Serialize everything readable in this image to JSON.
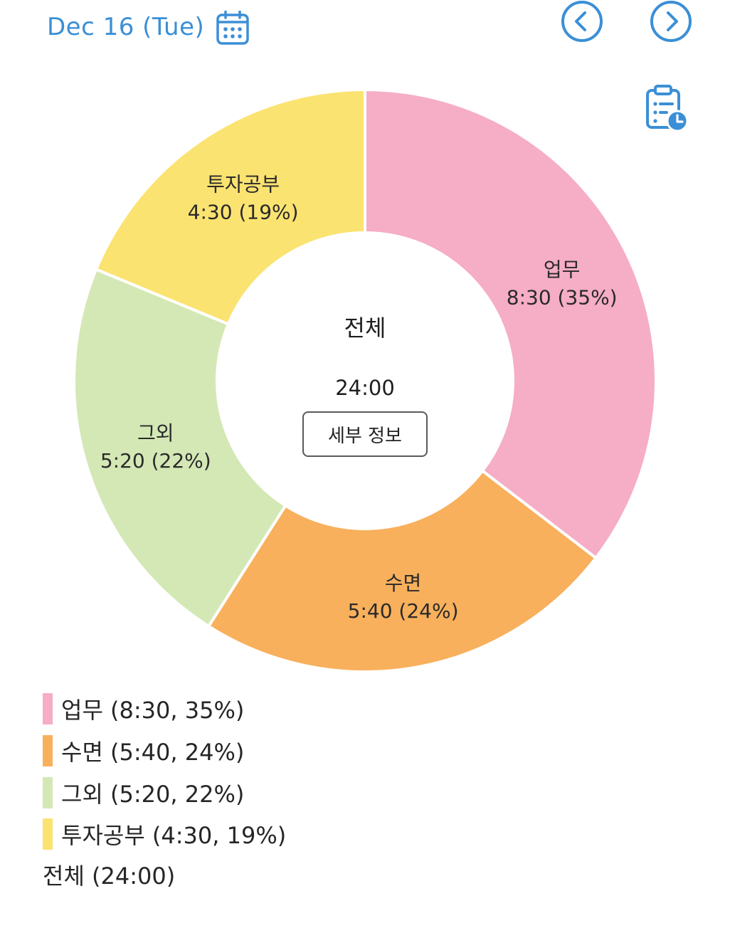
{
  "header": {
    "date_label": "Dec 16 (Tue)",
    "accent_color": "#3b8fd6",
    "calendar_icon": "calendar-icon",
    "prev_icon": "chevron-left-circle-icon",
    "next_icon": "chevron-right-circle-icon",
    "report_icon": "clipboard-clock-icon"
  },
  "chart_data": {
    "type": "pie",
    "donut": true,
    "center_title": "전체",
    "center_total": "24:00",
    "slices": [
      {
        "name": "업무",
        "time": "8:30",
        "percent": 35,
        "label": "8:30 (35%)",
        "color": "#f6adc6"
      },
      {
        "name": "수면",
        "time": "5:40",
        "percent": 24,
        "label": "5:40 (24%)",
        "color": "#f8b05c"
      },
      {
        "name": "그외",
        "time": "5:20",
        "percent": 22,
        "label": "5:20 (22%)",
        "color": "#d4e8b5"
      },
      {
        "name": "투자공부",
        "time": "4:30",
        "percent": 19,
        "label": "4:30 (19%)",
        "color": "#fbe371"
      }
    ],
    "minutes": [
      510,
      340,
      320,
      270
    ]
  },
  "detail_button": {
    "label": "세부 정보"
  },
  "legend": {
    "items": [
      {
        "text": "업무 (8:30, 35%)",
        "color": "#f6adc6"
      },
      {
        "text": "수면 (5:40, 24%)",
        "color": "#f8b05c"
      },
      {
        "text": "그외 (5:20, 22%)",
        "color": "#d4e8b5"
      },
      {
        "text": "투자공부 (4:30, 19%)",
        "color": "#fbe371"
      }
    ],
    "total_text": "전체 (24:00)"
  }
}
